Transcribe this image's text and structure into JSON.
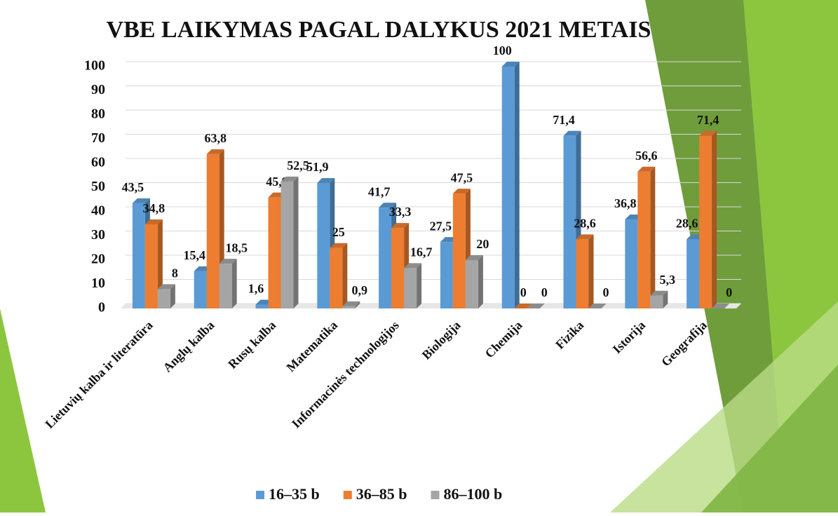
{
  "chart_data": {
    "type": "bar3d",
    "title": "VBE LAIKYMAS PAGAL DALYKUS 2021 METAIS",
    "categories": [
      "Lietuvių kalba ir literatūra",
      "Anglų kalba",
      "Rusų kalba",
      "Matematika",
      "Informacinės technologijos",
      "Biologija",
      "Chemija",
      "Fizika",
      "Istorija",
      "Geografija"
    ],
    "series": [
      {
        "name": "16–35 b",
        "color": "#5b9bd5",
        "values": [
          43.5,
          15.4,
          1.6,
          51.9,
          41.7,
          27.5,
          100,
          71.4,
          36.8,
          28.6
        ],
        "value_labels": [
          "43,5",
          "15,4",
          "1,6",
          "51,9",
          "41,7",
          "27,5",
          "100",
          "71,4",
          "36,8",
          "28,6"
        ]
      },
      {
        "name": "36–85 b",
        "color": "#ed7d31",
        "values": [
          34.8,
          63.8,
          45.9,
          25,
          33.3,
          47.5,
          0,
          28.6,
          56.6,
          71.4
        ],
        "value_labels": [
          "34,8",
          "63,8",
          "45,9",
          "25",
          "33,3",
          "47,5",
          "0",
          "28,6",
          "56,6",
          "71,4"
        ]
      },
      {
        "name": "86–100 b",
        "color": "#a5a5a5",
        "values": [
          8,
          18.5,
          52.5,
          0.9,
          16.7,
          20,
          0,
          0,
          5.3,
          0
        ],
        "value_labels": [
          "8",
          "18,5",
          "52,5",
          "0,9",
          "16,7",
          "20",
          "0",
          "0",
          "5,3",
          "0"
        ]
      }
    ],
    "ylim": [
      0,
      100
    ],
    "yticks": [
      0,
      10,
      20,
      30,
      40,
      50,
      60,
      70,
      80,
      90,
      100
    ],
    "grid": true,
    "legend": "bottom"
  }
}
